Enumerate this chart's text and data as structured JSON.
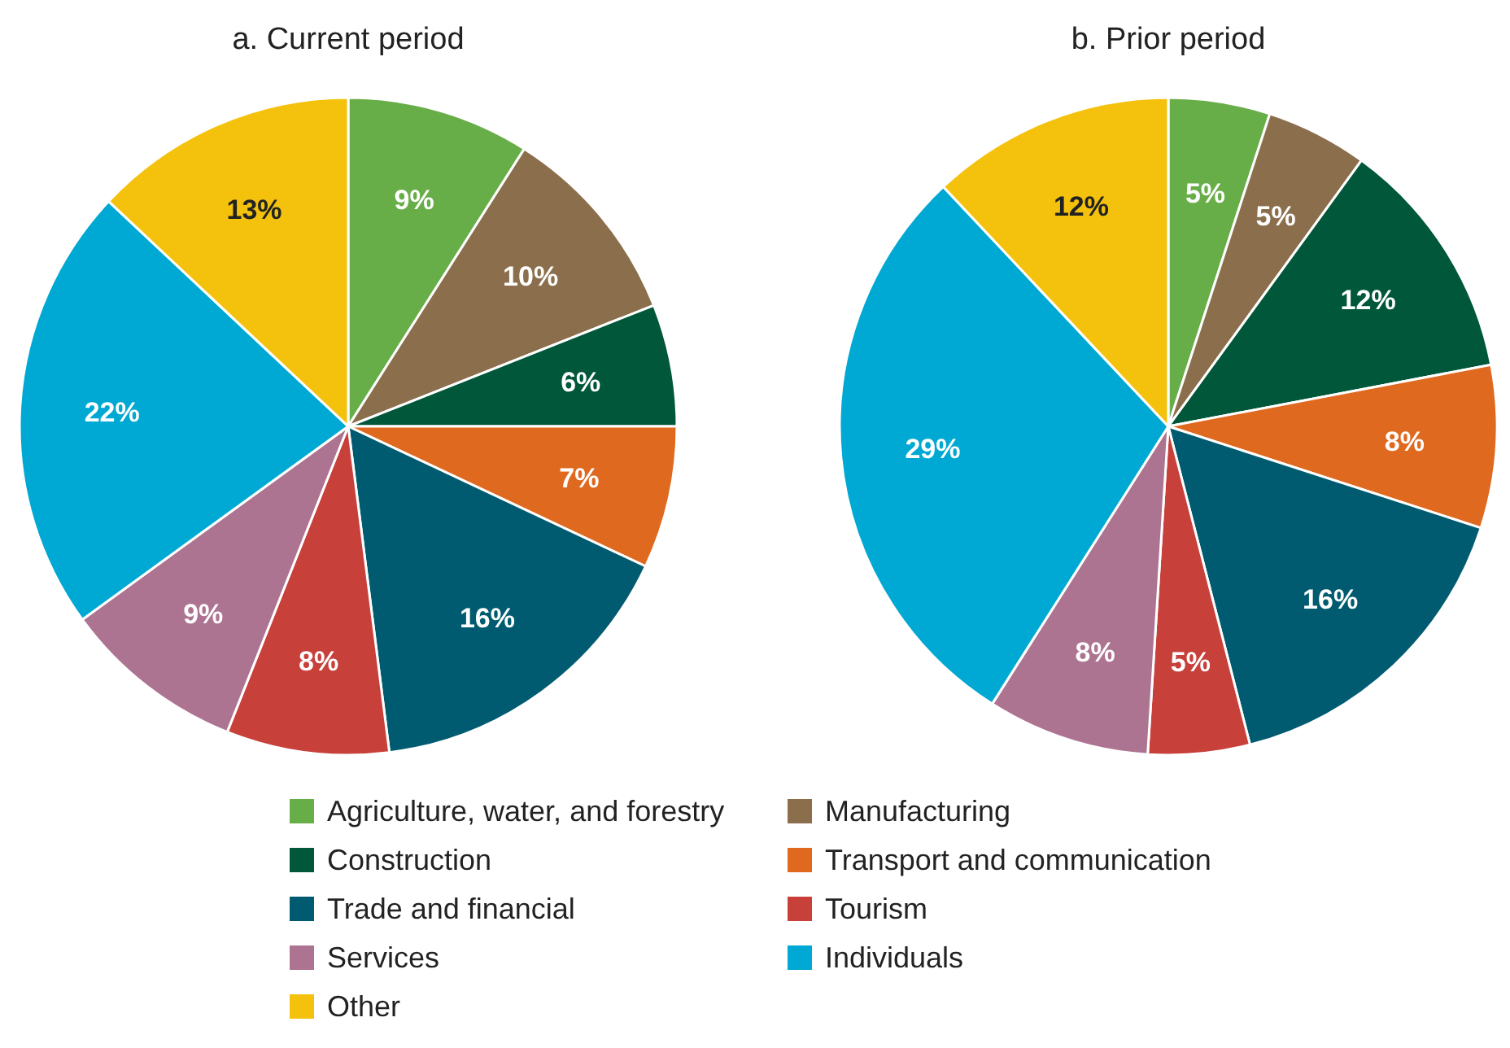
{
  "chart_data": [
    {
      "type": "pie",
      "title": "a. Current period",
      "categories": [
        "Agriculture, water, and forestry",
        "Manufacturing",
        "Construction",
        "Transport and communication",
        "Trade and financial",
        "Tourism",
        "Services",
        "Individuals",
        "Other"
      ],
      "values": [
        9,
        10,
        6,
        7,
        16,
        8,
        9,
        22,
        13
      ],
      "value_labels": [
        "9%",
        "10%",
        "6%",
        "7%",
        "16%",
        "8%",
        "9%",
        "22%",
        "13%"
      ],
      "colors": [
        "#68ae48",
        "#8b6f4c",
        "#00573a",
        "#df691f",
        "#005b70",
        "#c7403a",
        "#ad7492",
        "#00a9d3",
        "#f4c20d"
      ],
      "legend": "bottom"
    },
    {
      "type": "pie",
      "title": "b. Prior period",
      "categories": [
        null,
        null,
        null,
        null,
        null,
        null,
        null,
        null,
        null
      ],
      "values": [
        5,
        5,
        12,
        8,
        16,
        5,
        8,
        29,
        12
      ],
      "value_labels": [
        "5%",
        "5%",
        "12%",
        "8%",
        "16%",
        "5%",
        "8%",
        "29%",
        "12%"
      ],
      "colors": [
        "#68ae48",
        "#8b6f4c",
        "#00573a",
        "#df691f",
        "#005b70",
        "#c7403a",
        "#ad7492",
        "#00a9d3",
        "#f4c20d"
      ]
    }
  ]
}
